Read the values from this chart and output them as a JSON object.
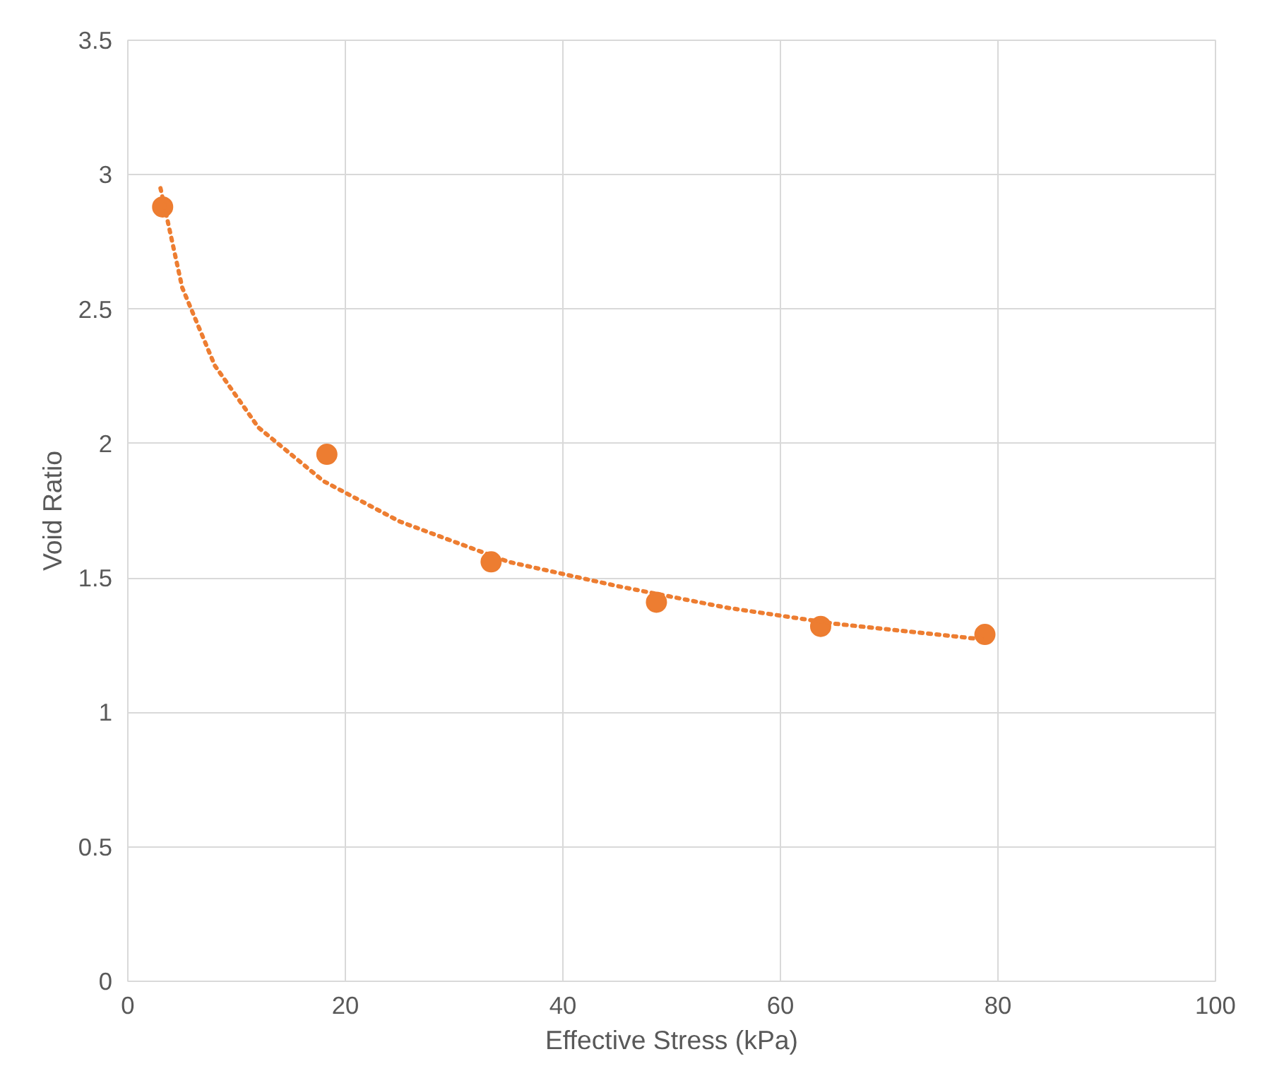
{
  "chart_data": {
    "type": "scatter",
    "xlabel": "Effective Stress (kPa)",
    "ylabel": "Void Ratio",
    "x": [
      3.2,
      18.3,
      33.4,
      48.6,
      63.7,
      78.8
    ],
    "series": [
      {
        "color": "#ed7d31",
        "values": [
          2.88,
          1.96,
          1.56,
          1.41,
          1.32,
          1.29
        ],
        "marker": "circle"
      },
      {
        "type": "line",
        "color": "#ed7d31",
        "x": [
          3,
          5,
          8,
          12,
          18,
          25,
          35,
          45,
          55,
          65,
          79
        ],
        "values": [
          2.95,
          2.58,
          2.29,
          2.06,
          1.86,
          1.71,
          1.56,
          1.47,
          1.39,
          1.33,
          1.27
        ],
        "line_style": "dotted"
      }
    ],
    "xlim": [
      0,
      100
    ],
    "ylim": [
      0,
      3.5
    ],
    "xticks": [
      0,
      20,
      40,
      60,
      80,
      100
    ],
    "yticks": [
      0,
      0.5,
      1,
      1.5,
      2,
      2.5,
      3,
      3.5
    ],
    "grid": true
  }
}
